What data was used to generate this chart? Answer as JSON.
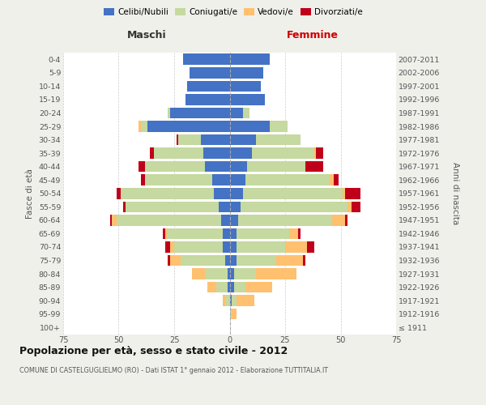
{
  "age_groups": [
    "100+",
    "95-99",
    "90-94",
    "85-89",
    "80-84",
    "75-79",
    "70-74",
    "65-69",
    "60-64",
    "55-59",
    "50-54",
    "45-49",
    "40-44",
    "35-39",
    "30-34",
    "25-29",
    "20-24",
    "15-19",
    "10-14",
    "5-9",
    "0-4"
  ],
  "birth_years": [
    "≤ 1911",
    "1912-1916",
    "1917-1921",
    "1922-1926",
    "1927-1931",
    "1932-1936",
    "1937-1941",
    "1942-1946",
    "1947-1951",
    "1952-1956",
    "1957-1961",
    "1962-1966",
    "1967-1971",
    "1972-1976",
    "1977-1981",
    "1982-1986",
    "1987-1991",
    "1992-1996",
    "1997-2001",
    "2002-2006",
    "2007-2011"
  ],
  "maschi": {
    "celibi": [
      0,
      0,
      0,
      1,
      1,
      2,
      3,
      3,
      4,
      5,
      7,
      8,
      11,
      12,
      13,
      37,
      27,
      20,
      19,
      18,
      21
    ],
    "coniugati": [
      0,
      0,
      2,
      5,
      10,
      20,
      22,
      25,
      47,
      42,
      42,
      30,
      27,
      22,
      10,
      3,
      1,
      0,
      0,
      0,
      0
    ],
    "vedovi": [
      0,
      0,
      1,
      4,
      6,
      5,
      2,
      1,
      2,
      0,
      0,
      0,
      0,
      0,
      0,
      1,
      0,
      0,
      0,
      0,
      0
    ],
    "divorziati": [
      0,
      0,
      0,
      0,
      0,
      1,
      2,
      1,
      1,
      1,
      2,
      2,
      3,
      2,
      1,
      0,
      0,
      0,
      0,
      0,
      0
    ]
  },
  "femmine": {
    "nubili": [
      0,
      0,
      1,
      2,
      2,
      3,
      3,
      3,
      4,
      5,
      6,
      7,
      8,
      10,
      12,
      18,
      6,
      16,
      14,
      15,
      18
    ],
    "coniugate": [
      0,
      1,
      2,
      5,
      10,
      18,
      22,
      24,
      42,
      48,
      45,
      38,
      26,
      28,
      20,
      8,
      3,
      0,
      0,
      0,
      0
    ],
    "vedove": [
      0,
      2,
      8,
      12,
      18,
      12,
      10,
      4,
      6,
      2,
      1,
      2,
      0,
      1,
      0,
      0,
      0,
      0,
      0,
      0,
      0
    ],
    "divorziate": [
      0,
      0,
      0,
      0,
      0,
      1,
      3,
      1,
      1,
      4,
      7,
      2,
      8,
      3,
      0,
      0,
      0,
      0,
      0,
      0,
      0
    ]
  },
  "colors": {
    "celibi": "#4472c4",
    "coniugati": "#c5d9a0",
    "vedovi": "#ffc06f",
    "divorziati": "#c0001a"
  },
  "xlim": 75,
  "title": "Popolazione per età, sesso e stato civile - 2012",
  "subtitle": "COMUNE DI CASTELGUGLIELMO (RO) - Dati ISTAT 1° gennaio 2012 - Elaborazione TUTTITALIA.IT",
  "ylabel_left": "Fasce di età",
  "ylabel_right": "Anni di nascita",
  "xlabel_left": "Maschi",
  "xlabel_right": "Femmine",
  "bg_color": "#f0f0eb",
  "plot_bg": "#ffffff",
  "legend_labels": [
    "Celibi/Nubili",
    "Coniugati/e",
    "Vedovi/e",
    "Divorziati/e"
  ]
}
